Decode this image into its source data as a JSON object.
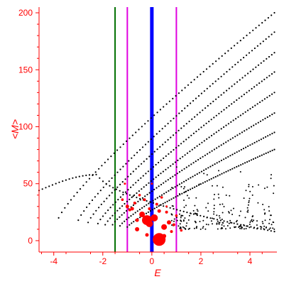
{
  "chart_data": {
    "type": "scatter",
    "title": "",
    "xlabel": "E",
    "ylabel": "<M>",
    "xlim": [
      -4.6,
      5.1
    ],
    "ylim": [
      -10,
      205
    ],
    "grid": false,
    "legend": "none",
    "axis_color": "#ff0000",
    "x_ticks": [
      -4,
      -2,
      0,
      2,
      4
    ],
    "x_tick_labels": [
      "-4",
      "-2",
      "0",
      "2",
      "4"
    ],
    "y_ticks": [
      0,
      50,
      100,
      150,
      200
    ],
    "y_tick_labels": [
      "0",
      "50",
      "100",
      "150",
      "200"
    ],
    "vertical_lines": [
      {
        "x": -1.5,
        "color": "#007000",
        "width": 2
      },
      {
        "x": -1.0,
        "color": "#e000e0",
        "width": 2
      },
      {
        "x": 0.0,
        "color": "#0000ff",
        "width": 5
      },
      {
        "x": 1.0,
        "color": "#e000e0",
        "width": 2
      }
    ],
    "series": [
      {
        "color": "#000000",
        "marker": "dot",
        "curves": [
          {
            "e0": -4.6,
            "e1": 5.0,
            "type": "arc",
            "peak_e": -2.2,
            "peak_m": 58,
            "m_start": 44,
            "m_end_slope": 0
          },
          {
            "e0": -3.8,
            "e1": 5.0,
            "m0": 20,
            "m1": 200
          },
          {
            "e0": -3.0,
            "e1": 5.0,
            "m0": 18,
            "m1": 183
          },
          {
            "e0": -2.6,
            "e1": 5.0,
            "m0": 16,
            "m1": 165
          },
          {
            "e0": -2.2,
            "e1": 5.0,
            "m0": 15,
            "m1": 148
          },
          {
            "e0": -1.9,
            "e1": 5.0,
            "m0": 14,
            "m1": 130
          },
          {
            "e0": -1.6,
            "e1": 5.0,
            "m0": 14,
            "m1": 112
          },
          {
            "e0": -1.3,
            "e1": 5.0,
            "m0": 13,
            "m1": 95
          },
          {
            "e0": -1.0,
            "e1": 5.0,
            "m0": 12,
            "m1": 80
          }
        ],
        "scatter_region": {
          "e0": 0.8,
          "e1": 5.0,
          "m0": 10,
          "m1": 70
        }
      },
      {
        "color": "#ff0000",
        "marker": "blob",
        "points": [
          {
            "x": -0.2,
            "y": 18,
            "size": 7
          },
          {
            "x": 0.3,
            "y": 1,
            "size": 9
          },
          {
            "x": -0.1,
            "y": 15,
            "size": 5
          },
          {
            "x": 0.1,
            "y": 20,
            "size": 5
          },
          {
            "x": -0.4,
            "y": 23,
            "size": 4
          },
          {
            "x": 0.5,
            "y": 12,
            "size": 4
          },
          {
            "x": -0.6,
            "y": 10,
            "size": 3
          },
          {
            "x": 0.7,
            "y": 16,
            "size": 3
          },
          {
            "x": -0.8,
            "y": 28,
            "size": 2.5
          },
          {
            "x": -1.0,
            "y": 30,
            "size": 2.5
          },
          {
            "x": -0.7,
            "y": 33,
            "size": 2
          },
          {
            "x": -0.9,
            "y": 27,
            "size": 2
          },
          {
            "x": 0.2,
            "y": 32,
            "size": 2
          },
          {
            "x": 0.6,
            "y": 25,
            "size": 2
          },
          {
            "x": -0.3,
            "y": 36,
            "size": 2
          },
          {
            "x": 0.9,
            "y": 14,
            "size": 2
          },
          {
            "x": 1.2,
            "y": 9,
            "size": 1.8
          },
          {
            "x": -1.2,
            "y": 36,
            "size": 1.8
          },
          {
            "x": -0.5,
            "y": 40,
            "size": 1.8
          },
          {
            "x": 0.0,
            "y": 50,
            "size": 1.5
          },
          {
            "x": -1.1,
            "y": 50,
            "size": 1.5
          },
          {
            "x": 0.4,
            "y": 38,
            "size": 1.8
          },
          {
            "x": 1.0,
            "y": 22,
            "size": 1.8
          },
          {
            "x": -0.2,
            "y": 5,
            "size": 2.5
          },
          {
            "x": 0.5,
            "y": 4,
            "size": 3
          },
          {
            "x": 0.8,
            "y": 8,
            "size": 2
          },
          {
            "x": -0.6,
            "y": 18,
            "size": 2.5
          },
          {
            "x": 0.3,
            "y": 26,
            "size": 2.5
          },
          {
            "x": -0.1,
            "y": 28,
            "size": 2
          },
          {
            "x": 0.6,
            "y": 30,
            "size": 1.5
          }
        ]
      }
    ]
  }
}
